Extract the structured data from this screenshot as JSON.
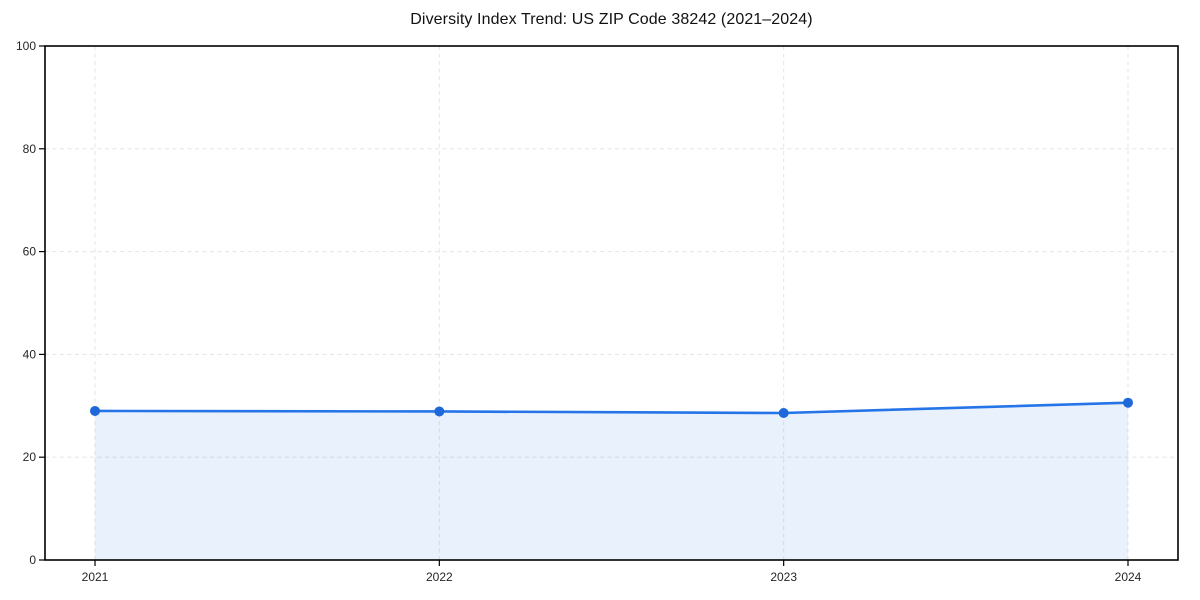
{
  "page": {
    "background_color": "#ffffff"
  },
  "chart_data": {
    "type": "area",
    "title": "Diversity Index Trend: US ZIP Code 38242 (2021–2024)",
    "categories": [
      "2021",
      "2022",
      "2023",
      "2024"
    ],
    "x": [
      2021,
      2022,
      2023,
      2024
    ],
    "series": [
      {
        "name": "Diversity Index",
        "values": [
          29.0,
          28.9,
          28.6,
          30.6
        ]
      }
    ],
    "xlabel": "",
    "ylabel": "",
    "ylim": [
      0,
      100
    ],
    "yticks": [
      0,
      20,
      40,
      60,
      80,
      100
    ],
    "grid": "dashed-both-axes",
    "legend_position": "none",
    "colors": {
      "line": "#2575e8",
      "marker": "#1e68d9",
      "fill": "rgba(37,117,232,0.10)",
      "grid": "#e7e7e7",
      "spine": "#000000",
      "tick_text": "#262626",
      "title_text": "#111111"
    }
  }
}
